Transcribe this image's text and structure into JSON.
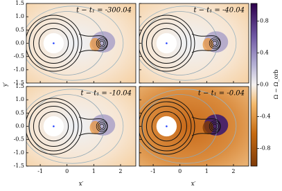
{
  "chart_data": [
    {
      "type": "contour",
      "title": "t − t₁ = -300.04",
      "xlim": [
        -1.52,
        2.57
      ],
      "ylim": [
        -1.5,
        1.5
      ],
      "xticks": [
        -1,
        0,
        1,
        2
      ],
      "yticks": [
        {
          "value": -1.5,
          "label": "-1.5"
        },
        {
          "value": -1,
          "label": "-1.0"
        },
        -0.5,
        {
          "value": 0,
          "label": "0.0"
        },
        0.5,
        {
          "value": 1,
          "label": "1.0"
        },
        1.5
      ]
    },
    {
      "type": "contour",
      "title": "t − t₁ = -40.04",
      "xlim": [
        -1.52,
        2.57
      ],
      "ylim": [
        -1.5,
        1.5
      ],
      "xticks": [
        -1,
        0,
        1,
        2
      ],
      "yticks": [
        {
          "value": -1.5,
          "label": "-1.5"
        },
        {
          "value": -1,
          "label": "-1.0"
        },
        -0.5,
        {
          "value": 0,
          "label": "0.0"
        },
        0.5,
        {
          "value": 1,
          "label": "1.0"
        },
        1.5
      ]
    },
    {
      "type": "contour",
      "title": "t − t₁ = -10.04",
      "xlim": [
        -1.52,
        2.57
      ],
      "ylim": [
        -1.5,
        1.5
      ],
      "xticks": [
        -1,
        0,
        1,
        2
      ],
      "yticks": [
        {
          "value": -1.5,
          "label": "-1.5"
        },
        {
          "value": -1,
          "label": "-1.0"
        },
        -0.5,
        {
          "value": 0,
          "label": "0.0"
        },
        0.5,
        {
          "value": 1,
          "label": "1.0"
        },
        1.5
      ]
    },
    {
      "type": "contour",
      "title": "t − t₁ = -0.04",
      "xlim": [
        -1.52,
        2.57
      ],
      "ylim": [
        -1.5,
        1.5
      ],
      "xticks": [
        -1,
        0,
        1,
        2
      ],
      "yticks": [
        {
          "value": -1.5,
          "label": "-1.5"
        },
        {
          "value": -1,
          "label": "-1.0"
        },
        -0.5,
        {
          "value": 0,
          "label": "0.0"
        },
        0.5,
        {
          "value": 1,
          "label": "1.0"
        },
        1.5
      ]
    }
  ],
  "figure": {
    "xlabel": "x′",
    "ylabel": "y′"
  },
  "colorbar": {
    "label": "Ω − Ω_orb",
    "lim": [
      -1.02,
      1.02
    ],
    "ticks": [
      -0.8,
      -0.4,
      {
        "value": 0,
        "label": "0.0"
      },
      0.4,
      0.8
    ]
  }
}
